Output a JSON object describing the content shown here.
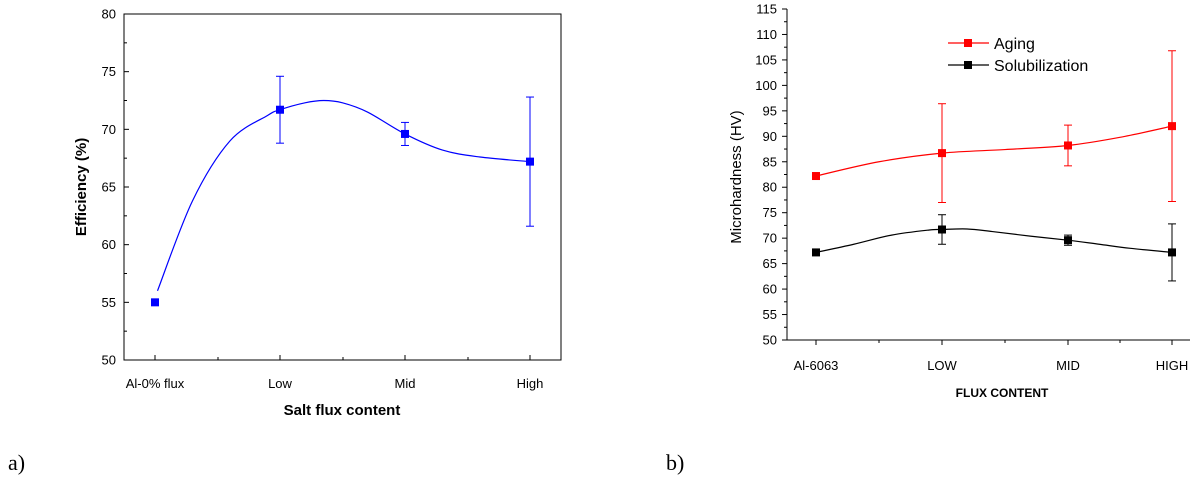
{
  "chart_data": [
    {
      "type": "line",
      "panel_label": "a)",
      "xlabel": "Salt flux content",
      "ylabel": "Efficiency (%)",
      "categories": [
        "Al-0% flux",
        "Low",
        "Mid",
        "High"
      ],
      "ylim": [
        50,
        80
      ],
      "yticks": [
        50,
        55,
        60,
        65,
        70,
        75,
        80
      ],
      "series": [
        {
          "color": "#0000ff",
          "values": [
            55.0,
            71.7,
            69.6,
            67.2
          ],
          "errors": [
            0,
            2.9,
            1.0,
            5.6
          ],
          "curve_x": [
            0.02,
            0.3,
            0.6,
            0.9,
            1.0,
            1.2,
            1.35,
            1.5,
            1.7,
            2.0,
            2.3,
            2.6,
            3.0
          ],
          "curve_y": [
            56.0,
            63.8,
            69.0,
            71.2,
            71.7,
            72.3,
            72.5,
            72.3,
            71.5,
            69.6,
            68.2,
            67.6,
            67.2
          ]
        }
      ]
    },
    {
      "type": "line",
      "panel_label": "b)",
      "xlabel": "FLUX CONTENT",
      "ylabel": "Microhardness (HV)",
      "categories": [
        "Al-6063",
        "LOW",
        "MID",
        "HIGH"
      ],
      "ylim": [
        50,
        115
      ],
      "yticks": [
        50,
        55,
        60,
        65,
        70,
        75,
        80,
        85,
        90,
        95,
        100,
        105,
        110,
        115
      ],
      "legend_position": "top-right",
      "series": [
        {
          "name": "Aging",
          "color": "#ff0000",
          "values": [
            82.2,
            86.7,
            88.2,
            92.0
          ],
          "errors": [
            0,
            9.7,
            4.0,
            14.8
          ],
          "curve_x": [
            0,
            0.5,
            1.0,
            1.5,
            2.0,
            2.5,
            3.0
          ],
          "curve_y": [
            82.2,
            85.0,
            86.7,
            87.4,
            88.2,
            89.8,
            92.0
          ]
        },
        {
          "name": "Solubilization",
          "color": "#000000",
          "values": [
            67.2,
            71.7,
            69.6,
            67.2
          ],
          "errors": [
            0,
            2.9,
            1.0,
            5.6
          ],
          "curve_x": [
            0,
            0.3,
            0.6,
            0.9,
            1.0,
            1.2,
            1.4,
            1.7,
            2.0,
            2.3,
            2.6,
            3.0
          ],
          "curve_y": [
            67.2,
            68.8,
            70.6,
            71.6,
            71.7,
            71.8,
            71.3,
            70.4,
            69.6,
            68.8,
            68.0,
            67.2
          ]
        }
      ]
    }
  ]
}
